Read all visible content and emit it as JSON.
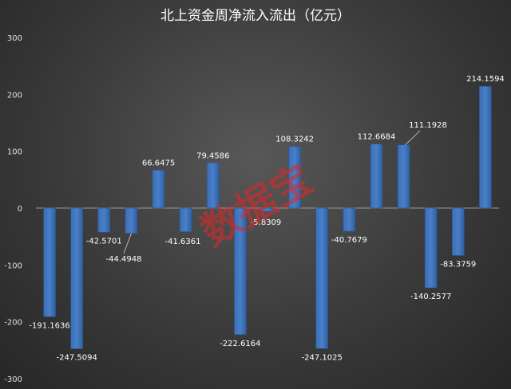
{
  "chart_data": {
    "type": "bar",
    "title": "北上资金周净流入流出（亿元）",
    "values": [
      -191.1636,
      -247.5094,
      -42.5701,
      -44.4948,
      66.6475,
      -41.6361,
      79.4586,
      -222.6164,
      -5.8309,
      108.3242,
      -247.1025,
      -40.7679,
      112.6684,
      111.1928,
      -140.2577,
      -83.3759,
      214.1594
    ],
    "labels": [
      "-191.1636",
      "-247.5094",
      "-42.5701",
      "-44.4948",
      "66.6475",
      "-41.6361",
      "79.4586",
      "-222.6164",
      "-5.8309",
      "108.3242",
      "-247.1025",
      "-40.7679",
      "112.6684",
      "111.1928",
      "-140.2577",
      "-83.3759",
      "214.1594"
    ],
    "ylim": [
      -300,
      300
    ],
    "yticks": [
      "300",
      "200",
      "100",
      "0",
      "-100",
      "-200",
      "-300"
    ],
    "ytick_values": [
      300,
      200,
      100,
      0,
      -100,
      -200,
      -300
    ],
    "bar_color": "#4a7fc8",
    "grid": false,
    "watermark": "数据宝"
  }
}
